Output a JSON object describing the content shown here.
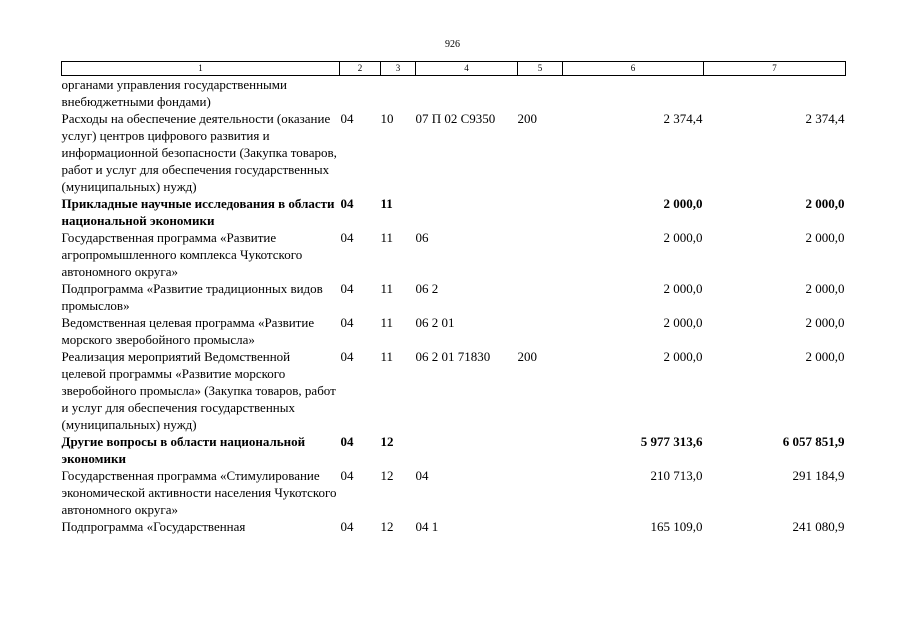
{
  "page_number": "926",
  "header": [
    "1",
    "2",
    "3",
    "4",
    "5",
    "6",
    "7"
  ],
  "rows": [
    {
      "name": "органами управления государственными внебюджетными фондами)",
      "rz": "",
      "pr": "",
      "csr": "",
      "vr": "",
      "sum1": "",
      "sum2": "",
      "bold": false
    },
    {
      "name": "Расходы на обеспечение деятельности (оказание услуг) центров цифрового развития и информационной безопасности (Закупка товаров, работ и услуг для обеспечения государственных (муниципальных) нужд)",
      "rz": "04",
      "pr": "10",
      "csr": "07 П 02 С9350",
      "vr": "200",
      "sum1": "2 374,4",
      "sum2": "2 374,4",
      "bold": false
    },
    {
      "name": "Прикладные научные исследования в области национальной экономики",
      "rz": "04",
      "pr": "11",
      "csr": "",
      "vr": "",
      "sum1": "2 000,0",
      "sum2": "2 000,0",
      "bold": true
    },
    {
      "name": "Государственная программа «Развитие агропромышленного комплекса Чукотского автономного округа»",
      "rz": "04",
      "pr": "11",
      "csr": "06",
      "vr": "",
      "sum1": "2 000,0",
      "sum2": "2 000,0",
      "bold": false
    },
    {
      "name": "Подпрограмма «Развитие традиционных видов промыслов»",
      "rz": "04",
      "pr": "11",
      "csr": "06 2",
      "vr": "",
      "sum1": "2 000,0",
      "sum2": "2 000,0",
      "bold": false
    },
    {
      "name": "Ведомственная целевая программа «Развитие морского зверобойного промысла»",
      "rz": "04",
      "pr": "11",
      "csr": "06 2 01",
      "vr": "",
      "sum1": "2 000,0",
      "sum2": "2 000,0",
      "bold": false
    },
    {
      "name": "Реализация мероприятий Ведомственной целевой программы «Развитие морского зверобойного промысла» (Закупка товаров, работ и услуг для обеспечения государственных (муниципальных) нужд)",
      "rz": "04",
      "pr": "11",
      "csr": "06 2 01 71830",
      "vr": "200",
      "sum1": "2 000,0",
      "sum2": "2 000,0",
      "bold": false
    },
    {
      "name": "Другие вопросы в области национальной экономики",
      "rz": "04",
      "pr": "12",
      "csr": "",
      "vr": "",
      "sum1": "5 977 313,6",
      "sum2": "6 057 851,9",
      "bold": true
    },
    {
      "name": "Государственная программа «Стимулирование экономической активности населения Чукотского автономного округа»",
      "rz": "04",
      "pr": "12",
      "csr": "04",
      "vr": "",
      "sum1": "210 713,0",
      "sum2": "291 184,9",
      "bold": false
    },
    {
      "name": "Подпрограмма «Государственная",
      "rz": "04",
      "pr": "12",
      "csr": "04 1",
      "vr": "",
      "sum1": "165 109,0",
      "sum2": "241 080,9",
      "bold": false
    }
  ]
}
